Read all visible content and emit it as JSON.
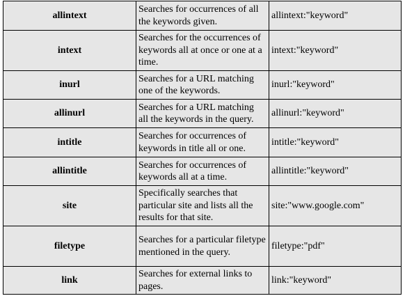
{
  "table": {
    "rows": [
      {
        "operator": "allintext",
        "description": "Searches for occurrences of all the keywords given.",
        "example": "allintext:\"keyword\""
      },
      {
        "operator": "intext",
        "description": "Searches for the occurrences of keywords all at once or one at a time.",
        "example": "intext:\"keyword\""
      },
      {
        "operator": "inurl",
        "description": "Searches for a URL matching one of the keywords.",
        "example": "inurl:\"keyword\""
      },
      {
        "operator": "allinurl",
        "description": "Searches for a URL matching all the keywords in the query.",
        "example": "allinurl:\"keyword\""
      },
      {
        "operator": "intitle",
        "description": "Searches for occurrences of keywords in title all or one.",
        "example": "intitle:\"keyword\""
      },
      {
        "operator": "allintitle",
        "description": "Searches for occurrences of keywords all at a time.",
        "example": "allintitle:\"keyword\""
      },
      {
        "operator": "site",
        "description": "Specifically searches that particular site and lists all the results for that site.",
        "example": "site:\"www.google.com\""
      },
      {
        "operator": "filetype",
        "description": "Searches for a particular filetype mentioned in the query.",
        "example": "filetype:\"pdf\""
      },
      {
        "operator": "link",
        "description": "Searches for external links to pages.",
        "example": "link:\"keyword\""
      }
    ]
  },
  "colors": {
    "cell_background": "#e6e6e6",
    "border": "#000000",
    "text": "#000000"
  }
}
